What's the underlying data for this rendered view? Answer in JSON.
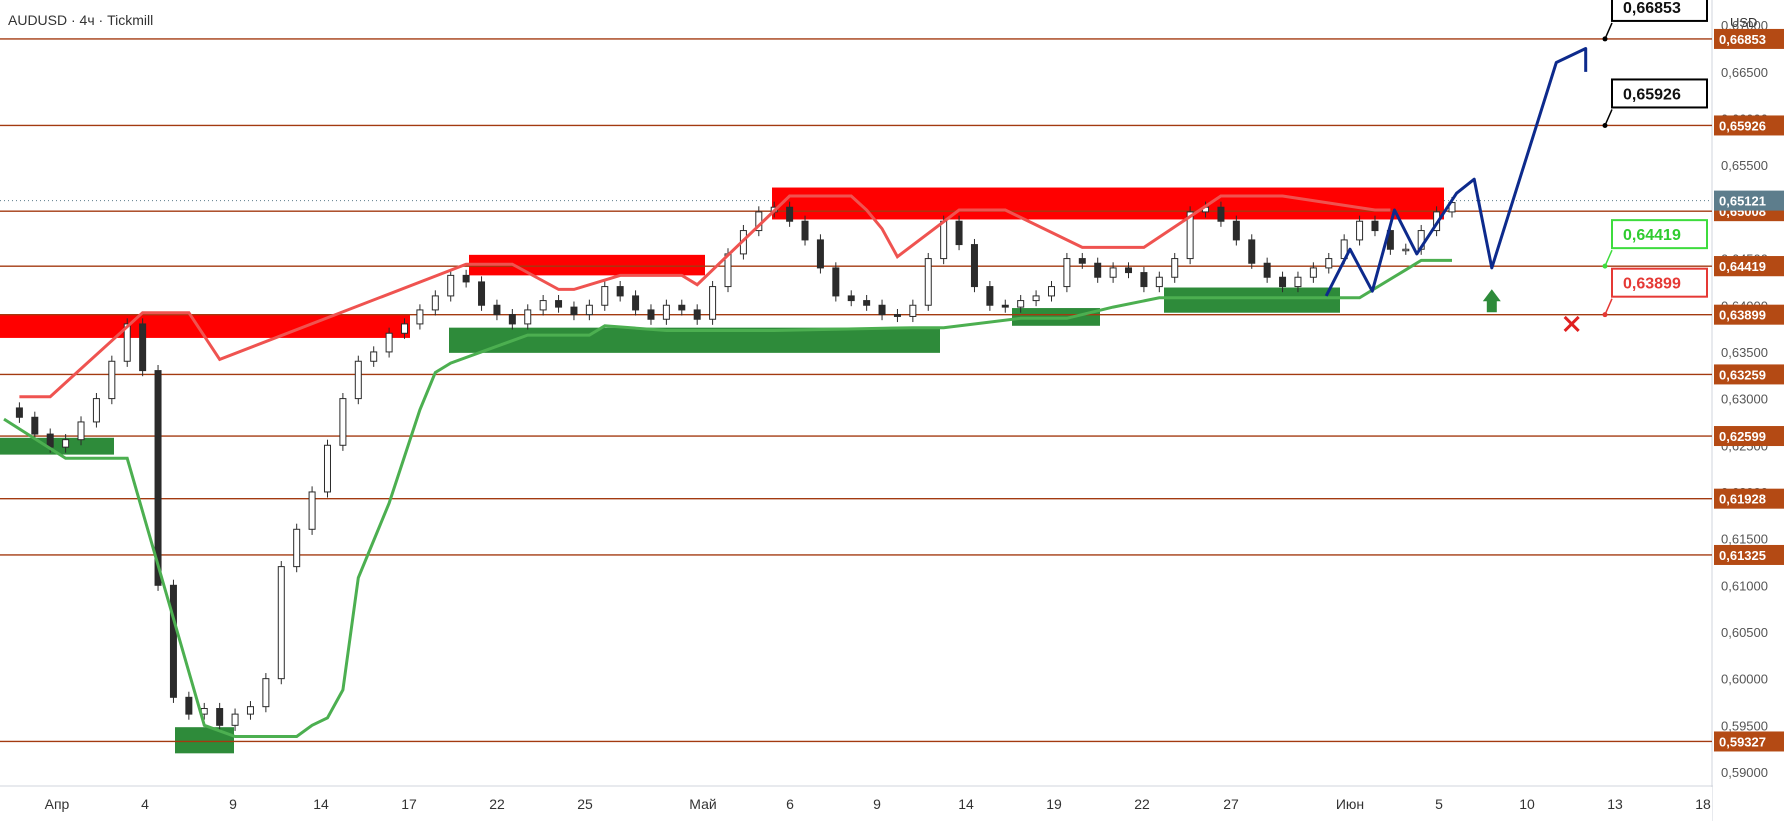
{
  "header": {
    "title": "AUDUSD · 4ч · Tickmill"
  },
  "axis": {
    "currency": "USD"
  },
  "colors": {
    "bull": "#26a69a",
    "bull_dark": "#2e7d32",
    "bear": "#ef5350",
    "level_line": "#a33a10",
    "level_tag": "#b44a14",
    "res_zone": "#ff0000",
    "sup_zone": "#2e8b3a",
    "trail_up": "#4caf50",
    "trail_down": "#ef5350",
    "fill_up": "#e8f5e9",
    "fill_down": "#fde7e9",
    "projection": "#0d2a8c",
    "current_price": "#5d7d8c"
  },
  "chart_data": {
    "type": "candlestick",
    "instrument": "AUDUSD",
    "timeframe": "4ч",
    "broker": "Tickmill",
    "ylim": [
      0.5885,
      0.6727
    ],
    "y_ticks": [
      "0,59000",
      "0,59500",
      "0,60000",
      "0,60500",
      "0,61000",
      "0,61500",
      "0,62000",
      "0,62500",
      "0,63000",
      "0,63500",
      "0,64000",
      "0,64500",
      "0,65000",
      "0,65500",
      "0,66000",
      "0,66500",
      "0,67000"
    ],
    "x_ticks": [
      "Апр",
      "4",
      "9",
      "14",
      "17",
      "22",
      "25",
      "Май",
      "6",
      "9",
      "14",
      "19",
      "22",
      "27",
      "Июн",
      "5",
      "10",
      "13",
      "18"
    ],
    "current_price": "0,65121",
    "levels": [
      "0,66853",
      "0,65926",
      "0,65008",
      "0,64419",
      "0,63899",
      "0,63259",
      "0,62599",
      "0,61928",
      "0,61325",
      "0,59327"
    ],
    "callouts": [
      {
        "label": "0,66853",
        "kind": "target"
      },
      {
        "label": "0,65926",
        "kind": "target"
      },
      {
        "label": "0,64419",
        "kind": "entry"
      },
      {
        "label": "0,63899",
        "kind": "stop"
      }
    ],
    "resistance_zones": [
      {
        "from": 0.6365,
        "to": 0.639
      },
      {
        "from": 0.6432,
        "to": 0.6454
      },
      {
        "from": 0.6492,
        "to": 0.6526
      },
      {
        "from": 0.6492,
        "to": 0.6526
      }
    ],
    "support_zones": [
      {
        "from": 0.624,
        "to": 0.6258
      },
      {
        "from": 0.592,
        "to": 0.5948
      },
      {
        "from": 0.6349,
        "to": 0.6376
      },
      {
        "from": 0.6378,
        "to": 0.6397
      },
      {
        "from": 0.6392,
        "to": 0.6419
      }
    ],
    "price_path": [
      0.629,
      0.628,
      0.6262,
      0.6248,
      0.6256,
      0.6275,
      0.63,
      0.634,
      0.638,
      0.633,
      0.61,
      0.598,
      0.5962,
      0.5968,
      0.595,
      0.5962,
      0.597,
      0.6,
      0.612,
      0.616,
      0.62,
      0.625,
      0.63,
      0.634,
      0.635,
      0.637,
      0.638,
      0.6395,
      0.641,
      0.6432,
      0.6425,
      0.64,
      0.639,
      0.638,
      0.6395,
      0.6405,
      0.6398,
      0.639,
      0.64,
      0.642,
      0.641,
      0.6395,
      0.6385,
      0.64,
      0.6395,
      0.6385,
      0.642,
      0.6455,
      0.648,
      0.65,
      0.6505,
      0.649,
      0.647,
      0.644,
      0.641,
      0.6405,
      0.64,
      0.639,
      0.6388,
      0.64,
      0.645,
      0.649,
      0.6465,
      0.642,
      0.64,
      0.6398,
      0.6405,
      0.641,
      0.642,
      0.645,
      0.6445,
      0.643,
      0.644,
      0.6435,
      0.642,
      0.643,
      0.645,
      0.65,
      0.6505,
      0.649,
      0.647,
      0.6445,
      0.643,
      0.642,
      0.643,
      0.644,
      0.645,
      0.647,
      0.649,
      0.648,
      0.646,
      0.646,
      0.648,
      0.65,
      0.651
    ],
    "projection": [
      {
        "x": "31 May",
        "y": 0.641
      },
      {
        "x": "1 Jun",
        "y": 0.646
      },
      {
        "x": "2 Jun",
        "y": 0.6415
      },
      {
        "x": "3 Jun",
        "y": 0.6502
      },
      {
        "x": "4 Jun",
        "y": 0.6455
      },
      {
        "x": "6 Jun",
        "y": 0.652
      },
      {
        "x": "7 Jun",
        "y": 0.6535
      },
      {
        "x": "8 Jun",
        "y": 0.644
      },
      {
        "x": "11 Jun",
        "y": 0.666
      },
      {
        "x": "12 Jun",
        "y": 0.6675
      },
      {
        "x": "12 Jun",
        "y": 0.665
      }
    ]
  }
}
